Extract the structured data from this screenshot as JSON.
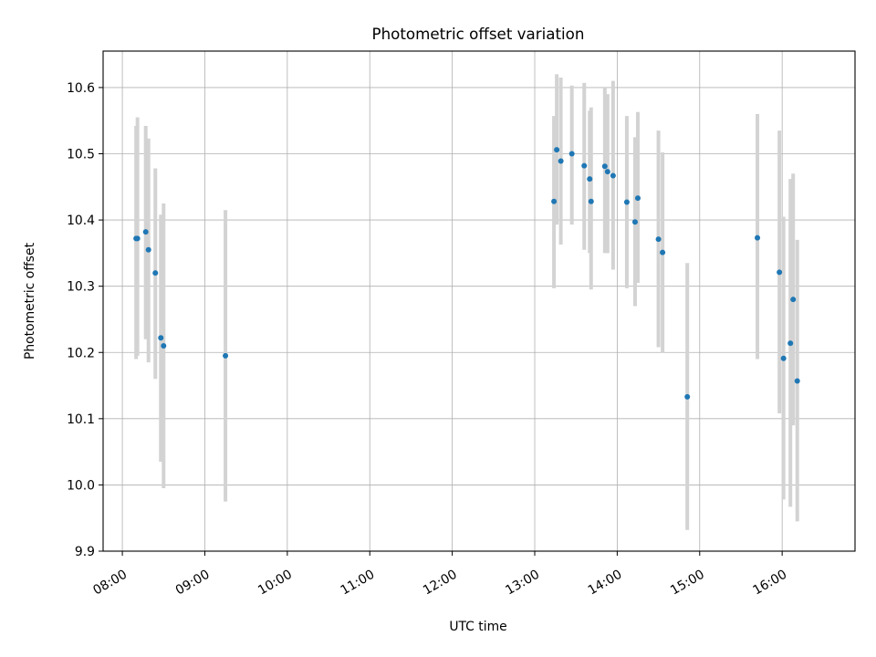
{
  "chart_data": {
    "type": "scatter",
    "title": "Photometric offset variation",
    "xlabel": "UTC time",
    "ylabel": "Photometric offset",
    "x_tick_labels": [
      "08:00",
      "09:00",
      "10:00",
      "11:00",
      "12:00",
      "13:00",
      "14:00",
      "15:00",
      "16:00"
    ],
    "y_tick_labels": [
      "9.9",
      "10.0",
      "10.1",
      "10.2",
      "10.3",
      "10.4",
      "10.5",
      "10.6"
    ],
    "xlim": [
      "07:46",
      "16:53"
    ],
    "ylim": [
      9.9,
      10.655
    ],
    "grid": true,
    "colors": {
      "point": "#1f77b4",
      "errorbar": "#d3d3d3",
      "grid": "#b0b0b0"
    },
    "points": [
      {
        "time": "08:10",
        "y": 10.372,
        "err_lo": 10.19,
        "err_hi": 10.542
      },
      {
        "time": "08:11",
        "y": 10.372,
        "err_lo": 10.195,
        "err_hi": 10.555
      },
      {
        "time": "08:17",
        "y": 10.382,
        "err_lo": 10.22,
        "err_hi": 10.542
      },
      {
        "time": "08:19",
        "y": 10.355,
        "err_lo": 10.185,
        "err_hi": 10.523
      },
      {
        "time": "08:24",
        "y": 10.32,
        "err_lo": 10.16,
        "err_hi": 10.478
      },
      {
        "time": "08:28",
        "y": 10.222,
        "err_lo": 10.035,
        "err_hi": 10.408
      },
      {
        "time": "08:30",
        "y": 10.21,
        "err_lo": 9.995,
        "err_hi": 10.425
      },
      {
        "time": "09:15",
        "y": 10.195,
        "err_lo": 9.975,
        "err_hi": 10.415
      },
      {
        "time": "13:14",
        "y": 10.428,
        "err_lo": 10.297,
        "err_hi": 10.557
      },
      {
        "time": "13:16",
        "y": 10.506,
        "err_lo": 10.393,
        "err_hi": 10.62
      },
      {
        "time": "13:19",
        "y": 10.489,
        "err_lo": 10.363,
        "err_hi": 10.615
      },
      {
        "time": "13:27",
        "y": 10.5,
        "err_lo": 10.393,
        "err_hi": 10.603
      },
      {
        "time": "13:36",
        "y": 10.482,
        "err_lo": 10.355,
        "err_hi": 10.607
      },
      {
        "time": "13:40",
        "y": 10.462,
        "err_lo": 10.35,
        "err_hi": 10.565
      },
      {
        "time": "13:41",
        "y": 10.428,
        "err_lo": 10.295,
        "err_hi": 10.57
      },
      {
        "time": "13:51",
        "y": 10.481,
        "err_lo": 10.35,
        "err_hi": 10.6
      },
      {
        "time": "13:53",
        "y": 10.473,
        "err_lo": 10.35,
        "err_hi": 10.59
      },
      {
        "time": "13:57",
        "y": 10.467,
        "err_lo": 10.325,
        "err_hi": 10.61
      },
      {
        "time": "14:07",
        "y": 10.427,
        "err_lo": 10.297,
        "err_hi": 10.557
      },
      {
        "time": "14:13",
        "y": 10.397,
        "err_lo": 10.27,
        "err_hi": 10.525
      },
      {
        "time": "14:15",
        "y": 10.433,
        "err_lo": 10.305,
        "err_hi": 10.563
      },
      {
        "time": "14:30",
        "y": 10.371,
        "err_lo": 10.208,
        "err_hi": 10.535
      },
      {
        "time": "14:33",
        "y": 10.351,
        "err_lo": 10.2,
        "err_hi": 10.502
      },
      {
        "time": "14:51",
        "y": 10.133,
        "err_lo": 9.932,
        "err_hi": 10.335
      },
      {
        "time": "15:42",
        "y": 10.373,
        "err_lo": 10.19,
        "err_hi": 10.56
      },
      {
        "time": "15:58",
        "y": 10.321,
        "err_lo": 10.108,
        "err_hi": 10.535
      },
      {
        "time": "16:01",
        "y": 10.191,
        "err_lo": 9.978,
        "err_hi": 10.405
      },
      {
        "time": "16:06",
        "y": 10.214,
        "err_lo": 9.967,
        "err_hi": 10.462
      },
      {
        "time": "16:08",
        "y": 10.28,
        "err_lo": 10.09,
        "err_hi": 10.47
      },
      {
        "time": "16:11",
        "y": 10.157,
        "err_lo": 9.945,
        "err_hi": 10.37
      }
    ]
  }
}
